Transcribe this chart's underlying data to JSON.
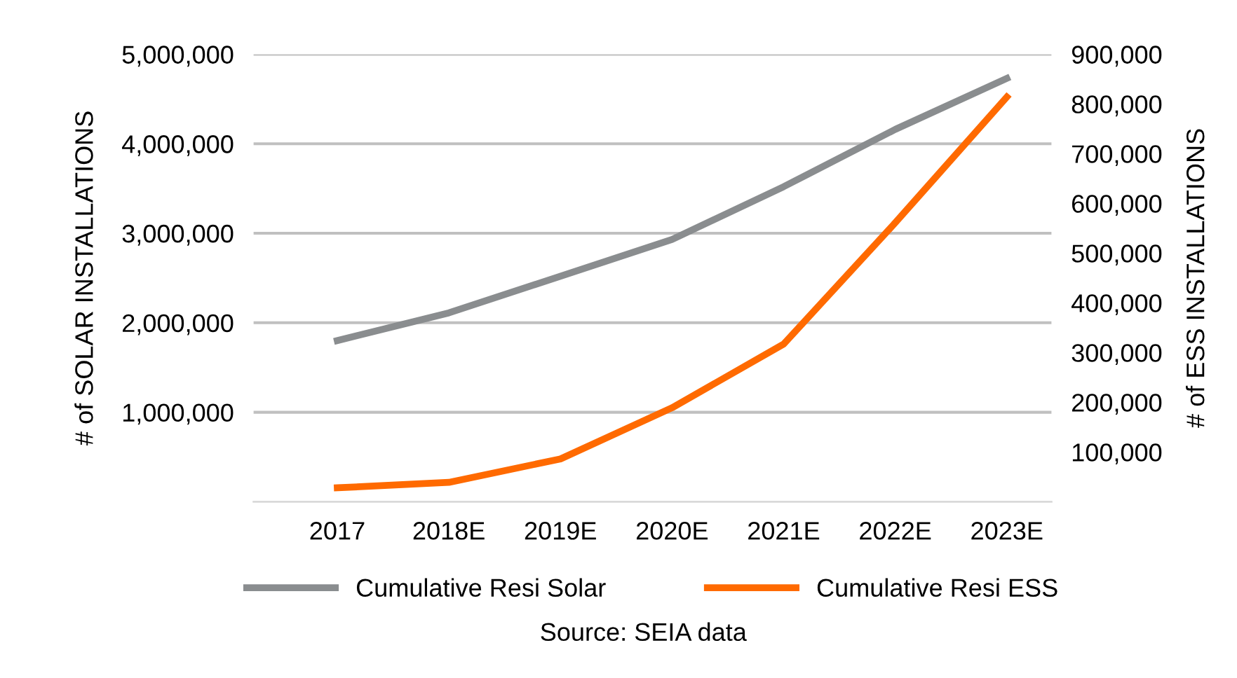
{
  "chart_data": {
    "type": "line",
    "ylabel": "# of SOLAR INSTALLATIONS",
    "y2label": "# of ESS INSTALLATIONS",
    "categories": [
      "2017",
      "2018E",
      "2019E",
      "2020E",
      "2021E",
      "2022E",
      "2023E"
    ],
    "series": [
      {
        "name": "Cumulative Resi Solar",
        "color": "#8a8d8f",
        "values": [
          1800000,
          2110000,
          2520000,
          2930000,
          3520000,
          4160000,
          4730000
        ]
      },
      {
        "name": "Cumulative Resi ESS",
        "color": "#ff6a00",
        "axis": "y2",
        "values": [
          28000,
          39000,
          86000,
          189000,
          317000,
          561000,
          814000
        ]
      }
    ],
    "yticks": [
      {
        "value": 1000000,
        "label": "1,000,000"
      },
      {
        "value": 2000000,
        "label": "2,000,000"
      },
      {
        "value": 3000000,
        "label": "3,000,000"
      },
      {
        "value": 4000000,
        "label": "4,000,000"
      },
      {
        "value": 5000000,
        "label": "5,000,000"
      }
    ],
    "y2ticks": [
      {
        "value": 100000,
        "label": "100,000"
      },
      {
        "value": 200000,
        "label": "200,000"
      },
      {
        "value": 300000,
        "label": "300,000"
      },
      {
        "value": 400000,
        "label": "400,000"
      },
      {
        "value": 500000,
        "label": "500,000"
      },
      {
        "value": 600000,
        "label": "600,000"
      },
      {
        "value": 700000,
        "label": "700,000"
      },
      {
        "value": 800000,
        "label": "800,000"
      },
      {
        "value": 900000,
        "label": "900,000"
      }
    ],
    "ylim": [
      0,
      5000000
    ],
    "y2lim": [
      0,
      900000
    ],
    "grid": "y",
    "legend": "bottom",
    "marker": "none",
    "line_style": "solid",
    "annotations": [
      "Source: SEIA data"
    ]
  }
}
